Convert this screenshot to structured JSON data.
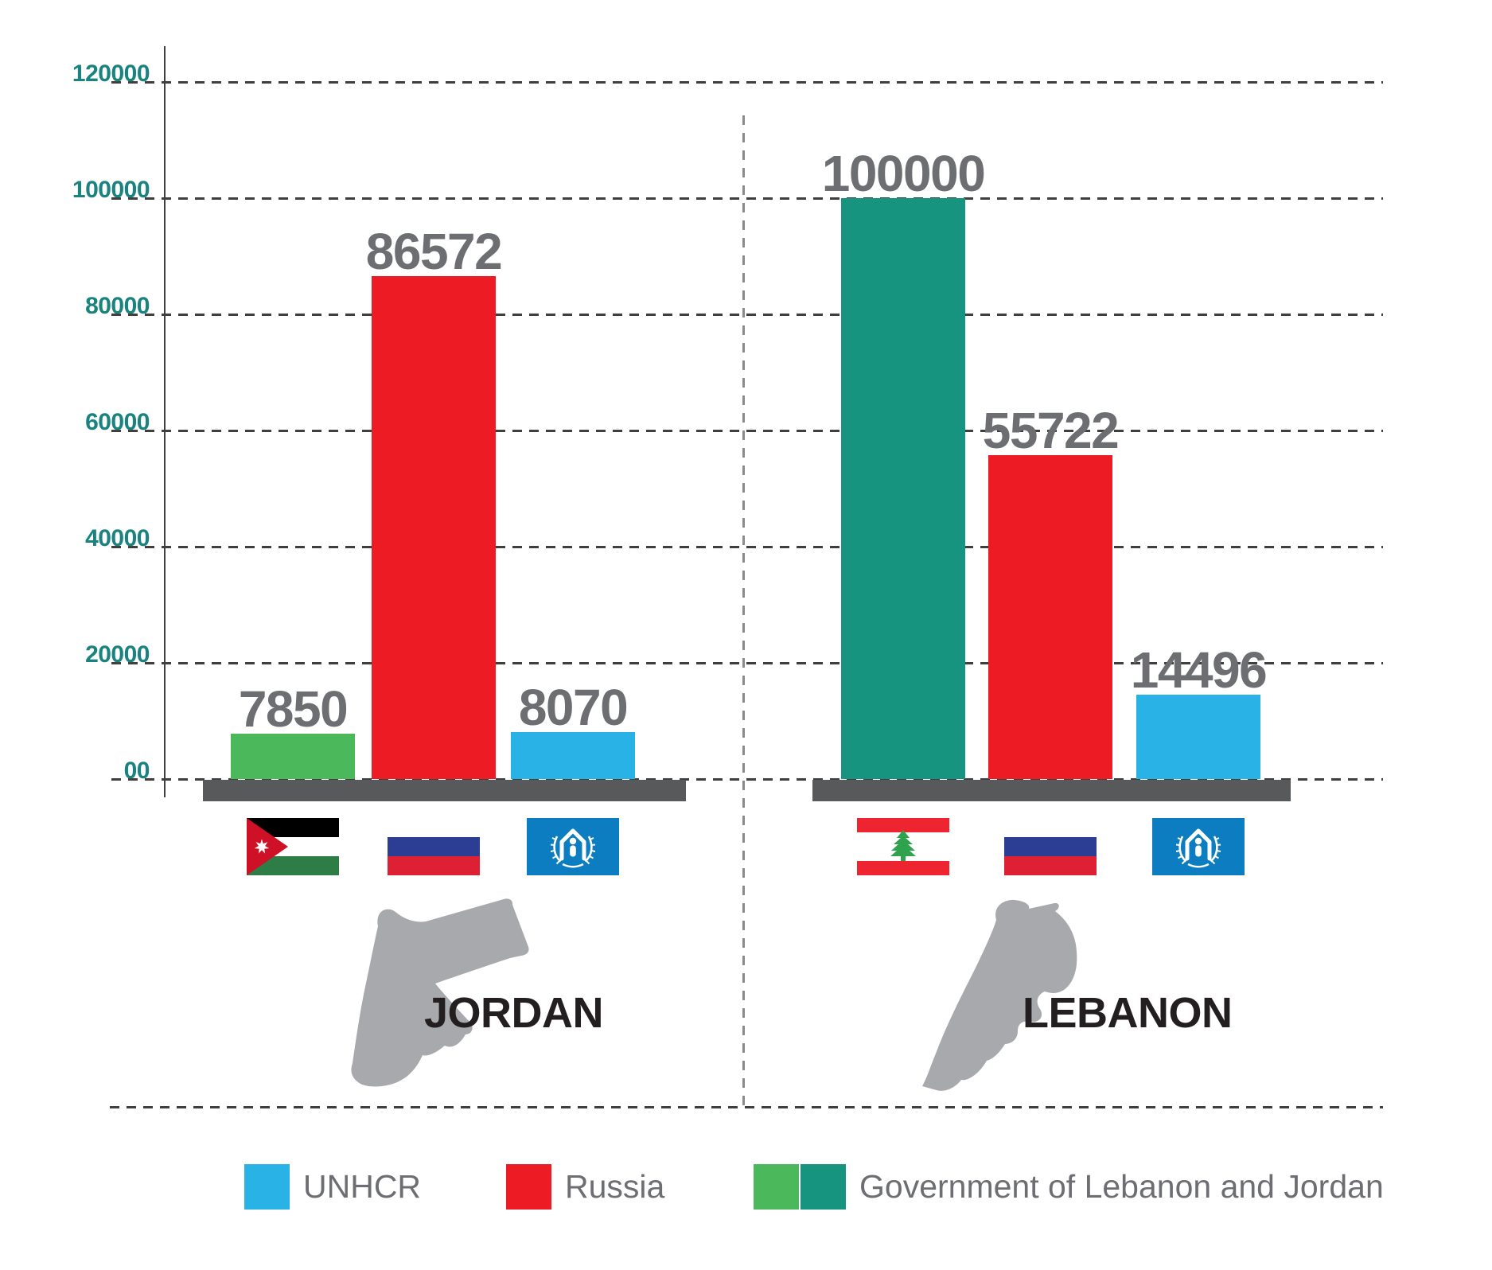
{
  "colors": {
    "background": "#FFFFFF",
    "unhcr_blue": "#29B2E6",
    "russia_red": "#ED1C24",
    "gov_green": "#4CB85C",
    "gov_teal": "#179480",
    "axis_label_teal": "#1B837F",
    "value_label_gray": "#6D6E71",
    "legend_text_gray": "#6D6E71",
    "map_gray": "#A7A9AC",
    "baseline_gray": "#58595B",
    "grid_dash": "#3F3F3F",
    "divider_dash": "#8A8A8A",
    "country_label_black": "#231F20",
    "flag_jordan_black": "#000000",
    "flag_jordan_green": "#2E7D46",
    "flag_jordan_red": "#CE1126",
    "flag_lebanon_red": "#EE2430",
    "flag_cedar_green": "#2FA24D",
    "flag_russia_blue": "#2C3E94",
    "flag_russia_red": "#DD2033",
    "flag_unhcr_blue": "#0C7DC0"
  },
  "chart_data": {
    "type": "bar",
    "title": "",
    "groups": [
      "JORDAN",
      "LEBANON"
    ],
    "series": [
      {
        "name": "Government of Lebanon and Jordan",
        "values": [
          7850,
          100000
        ]
      },
      {
        "name": "Russia",
        "values": [
          86572,
          55722
        ]
      },
      {
        "name": "UNHCR",
        "values": [
          8070,
          14496
        ]
      }
    ],
    "ylim": [
      0,
      120000
    ],
    "y_ticks": [
      0,
      20000,
      40000,
      60000,
      80000,
      100000,
      120000
    ],
    "y_tick_labels": [
      "00",
      "20000",
      "40000",
      "60000",
      "80000",
      "100000",
      "120000"
    ],
    "grid": "horizontal-dashed",
    "legend_position": "bottom",
    "groups_detail": [
      {
        "name": "JORDAN",
        "bars": [
          {
            "series": "Government of Lebanon and Jordan",
            "value": 7850,
            "label": "7850",
            "color_key": "gov_green",
            "flag": "jordan"
          },
          {
            "series": "Russia",
            "value": 86572,
            "label": "86572",
            "color_key": "russia_red",
            "flag": "russia"
          },
          {
            "series": "UNHCR",
            "value": 8070,
            "label": "8070",
            "color_key": "unhcr_blue",
            "flag": "unhcr"
          }
        ]
      },
      {
        "name": "LEBANON",
        "bars": [
          {
            "series": "Government of Lebanon and Jordan",
            "value": 100000,
            "label": "100000",
            "color_key": "gov_teal",
            "flag": "lebanon"
          },
          {
            "series": "Russia",
            "value": 55722,
            "label": "55722",
            "color_key": "russia_red",
            "flag": "russia"
          },
          {
            "series": "UNHCR",
            "value": 14496,
            "label": "14496",
            "color_key": "unhcr_blue",
            "flag": "unhcr"
          }
        ]
      }
    ]
  },
  "legend": {
    "items": [
      {
        "label": "UNHCR",
        "swatch_keys": [
          "unhcr_blue"
        ]
      },
      {
        "label": "Russia",
        "swatch_keys": [
          "russia_red"
        ]
      },
      {
        "label": "Government of Lebanon and Jordan",
        "swatch_keys": [
          "gov_green",
          "gov_teal"
        ]
      }
    ]
  },
  "flags": {
    "jordan": "Flag of Jordan",
    "lebanon": "Flag of Lebanon",
    "russia": "Flag of Russia",
    "unhcr": "Flag of UNHCR"
  }
}
